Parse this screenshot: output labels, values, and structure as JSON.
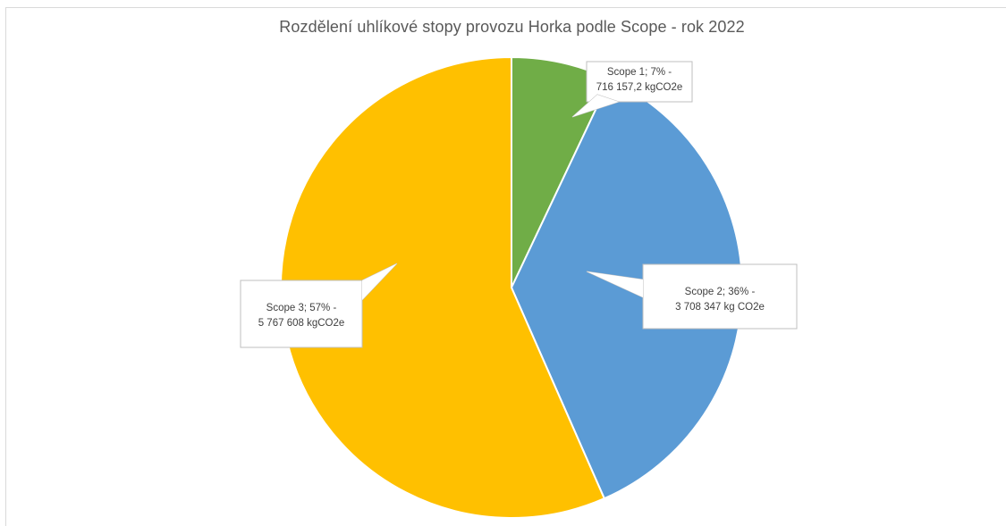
{
  "chart_data": {
    "type": "pie",
    "title": "Rozdělení uhlíkové stopy provozu Horka podle Scope - rok 2022",
    "slices": [
      {
        "name": "Scope 1",
        "value": 716157.2,
        "percent": 7,
        "label_line1": "Scope 1; 7% -",
        "label_line2": "716 157,2 kgCO2e",
        "color": "#70ad47"
      },
      {
        "name": "Scope 2",
        "value": 3708347,
        "percent": 36,
        "label_line1": "Scope 2; 36% -",
        "label_line2": "3 708 347 kg CO2e",
        "color": "#5b9bd5"
      },
      {
        "name": "Scope 3",
        "value": 5767608,
        "percent": 57,
        "label_line1": "Scope 3; 57% -",
        "label_line2": "5 767 608 kgCO2e",
        "color": "#ffc000"
      }
    ],
    "start_angle_deg": 0,
    "direction": "clockwise",
    "legend": "none"
  }
}
